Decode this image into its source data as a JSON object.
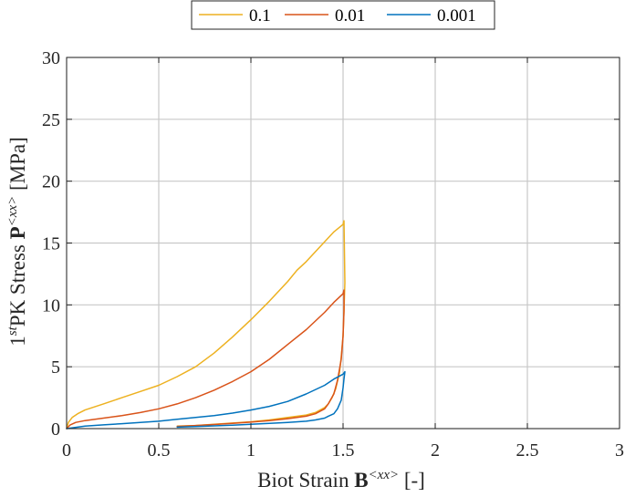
{
  "chart_data": {
    "type": "line",
    "xlabel": {
      "prefix": "Biot Strain ",
      "symbol": "B",
      "superscript": "<xx>",
      "suffix": " [-]"
    },
    "ylabel": {
      "prefix_base": "1",
      "prefix_sup": "st",
      "text": "PK Stress ",
      "symbol": "P",
      "superscript": "<xx>",
      "suffix": " [MPa]"
    },
    "xlim": [
      0,
      3
    ],
    "ylim": [
      0,
      30
    ],
    "x_ticks": [
      "0",
      "0.5",
      "1",
      "1.5",
      "2",
      "2.5",
      "3"
    ],
    "y_ticks": [
      "0",
      "5",
      "10",
      "15",
      "20",
      "25",
      "30"
    ],
    "grid": true,
    "legend_position": "top-center, outside, horizontal",
    "series": [
      {
        "name": "0.1",
        "color": "#EDB120",
        "x": [
          0,
          0.01,
          0.03,
          0.06,
          0.1,
          0.2,
          0.3,
          0.4,
          0.5,
          0.6,
          0.7,
          0.8,
          0.9,
          1.0,
          1.1,
          1.2,
          1.25,
          1.3,
          1.35,
          1.4,
          1.45,
          1.5,
          1.505,
          1.51,
          1.505,
          1.5,
          1.49,
          1.48,
          1.46,
          1.44,
          1.42,
          1.4,
          1.35,
          1.3,
          1.2,
          1.1,
          1.0,
          0.9,
          0.8,
          0.7,
          0.6
        ],
        "y": [
          0,
          0.5,
          0.9,
          1.2,
          1.5,
          2.0,
          2.5,
          3.0,
          3.5,
          4.2,
          5.0,
          6.1,
          7.4,
          8.8,
          10.3,
          11.9,
          12.8,
          13.5,
          14.3,
          15.1,
          15.9,
          16.5,
          16.8,
          11.8,
          9.5,
          7.5,
          5.8,
          4.5,
          3.2,
          2.5,
          2.0,
          1.7,
          1.3,
          1.1,
          0.9,
          0.7,
          0.55,
          0.45,
          0.35,
          0.25,
          0.2
        ]
      },
      {
        "name": "0.01",
        "color": "#D95319",
        "x": [
          0,
          0.02,
          0.05,
          0.1,
          0.2,
          0.3,
          0.4,
          0.5,
          0.6,
          0.7,
          0.8,
          0.9,
          1.0,
          1.1,
          1.2,
          1.3,
          1.4,
          1.45,
          1.5,
          1.505,
          1.505,
          1.5,
          1.49,
          1.47,
          1.45,
          1.42,
          1.4,
          1.35,
          1.3,
          1.2,
          1.1,
          1.0,
          0.9,
          0.8,
          0.7,
          0.6
        ],
        "y": [
          0,
          0.3,
          0.5,
          0.65,
          0.85,
          1.05,
          1.3,
          1.6,
          2.0,
          2.5,
          3.1,
          3.8,
          4.6,
          5.6,
          6.8,
          8.0,
          9.4,
          10.2,
          10.9,
          11.2,
          9.5,
          7.5,
          5.6,
          3.9,
          2.8,
          2.0,
          1.6,
          1.2,
          1.0,
          0.8,
          0.65,
          0.52,
          0.42,
          0.33,
          0.25,
          0.18
        ]
      },
      {
        "name": "0.001",
        "color": "#0072BD",
        "x": [
          0,
          0.05,
          0.1,
          0.2,
          0.3,
          0.4,
          0.5,
          0.6,
          0.7,
          0.8,
          0.9,
          1.0,
          1.1,
          1.2,
          1.3,
          1.4,
          1.45,
          1.5,
          1.51,
          1.505,
          1.5,
          1.49,
          1.47,
          1.45,
          1.42,
          1.4,
          1.35,
          1.3,
          1.2,
          1.1,
          1.0,
          0.9,
          0.8,
          0.7,
          0.6
        ],
        "y": [
          0,
          0.1,
          0.2,
          0.3,
          0.4,
          0.5,
          0.6,
          0.75,
          0.9,
          1.05,
          1.25,
          1.5,
          1.8,
          2.2,
          2.8,
          3.5,
          4.0,
          4.4,
          4.6,
          4.0,
          3.3,
          2.3,
          1.6,
          1.2,
          1.0,
          0.85,
          0.7,
          0.6,
          0.5,
          0.42,
          0.35,
          0.28,
          0.22,
          0.17,
          0.12
        ]
      }
    ]
  }
}
